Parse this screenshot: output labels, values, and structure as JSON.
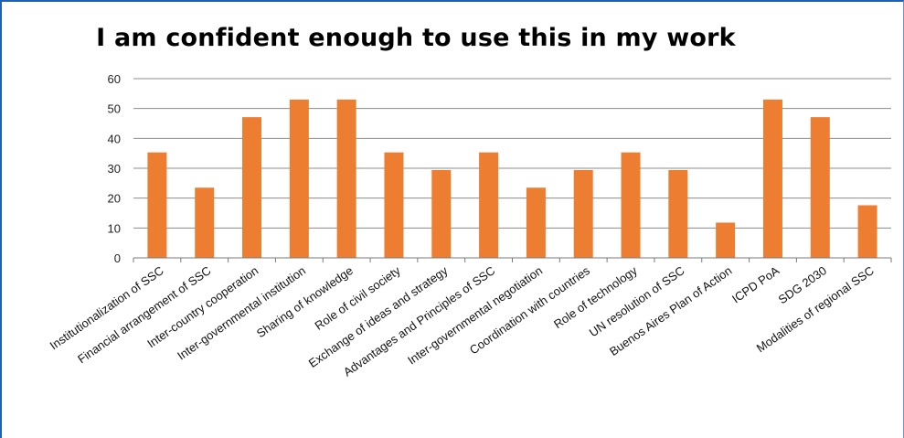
{
  "chart_data": {
    "type": "bar",
    "title": "I am confident enough to use this in my work",
    "xlabel": "",
    "ylabel": "",
    "ylim": [
      0,
      60
    ],
    "yticks": [
      0,
      10,
      20,
      30,
      40,
      50,
      60
    ],
    "grid": true,
    "legend": "none",
    "bar_color": "#ED7D31",
    "categories": [
      "Institutionalization of SSC",
      "Financial arrangement of SSC",
      "Inter-country cooperation",
      "Inter-governmental institution",
      "Sharing of knowledge",
      "Role of civil society",
      "Exchange of ideas  and strategy",
      "Advantages and Principles of SSC",
      "Inter-governmental negotiation",
      "Coordination with countries",
      "Role of technology",
      "UN resolution of SSC",
      "Buenos Aires Plan of Action",
      "ICPD PoA",
      "SDG 2030",
      "Modalities of regional SSC"
    ],
    "values": [
      35.3,
      23.5,
      47.1,
      53,
      53,
      35.3,
      29.4,
      35.3,
      23.5,
      29.4,
      35.3,
      29.4,
      11.8,
      53,
      47.1,
      17.6
    ]
  }
}
